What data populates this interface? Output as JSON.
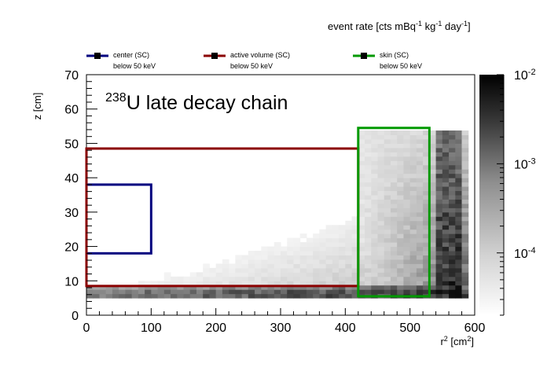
{
  "chart_data": {
    "type": "heatmap",
    "title": "late decay chain",
    "title_isotope_mass": "238",
    "title_isotope_symbol": "U",
    "xlabel": "r",
    "xlabel_sup": "2",
    "xlabel_unit_open": " [cm",
    "xlabel_unit_sup": "2",
    "xlabel_unit_close": "]",
    "ylabel": "z [cm]",
    "xlim": [
      0,
      600
    ],
    "ylim": [
      0,
      70
    ],
    "x_ticks": [
      "0",
      "100",
      "200",
      "300",
      "400",
      "500",
      "600"
    ],
    "x_tick_values": [
      0,
      100,
      200,
      300,
      400,
      500,
      600
    ],
    "y_ticks": [
      "0",
      "10",
      "20",
      "30",
      "40",
      "50",
      "60",
      "70"
    ],
    "y_tick_values": [
      0,
      10,
      20,
      30,
      40,
      50,
      60,
      70
    ],
    "colorbar": {
      "label_parts": [
        "event rate [cts mBq",
        "-1",
        " kg",
        "-1",
        " day",
        "-1",
        "]"
      ],
      "scale": "log",
      "range": [
        2e-05,
        0.01
      ],
      "ticks": [
        {
          "value": 0.01,
          "base": "10",
          "exp": "-2"
        },
        {
          "value": 0.001,
          "base": "10",
          "exp": "-3"
        },
        {
          "value": 0.0001,
          "base": "10",
          "exp": "-4"
        }
      ],
      "colormap": "grayscale"
    },
    "legend": [
      {
        "name": "center (SC)",
        "sub": "below 50 keV",
        "color": "#00007f"
      },
      {
        "name": "active volume (SC)",
        "sub": "below 50 keV",
        "color": "#8b0000"
      },
      {
        "name": "skin (SC)",
        "sub": "below 50 keV",
        "color": "#009900"
      }
    ],
    "regions": [
      {
        "name": "center (SC)",
        "color": "#00007f",
        "r2": [
          0,
          100
        ],
        "z": [
          18,
          38
        ]
      },
      {
        "name": "active volume (SC)",
        "color": "#8b0000",
        "r2": [
          0,
          420
        ],
        "z": [
          8.5,
          48.5
        ]
      },
      {
        "name": "skin (SC)",
        "color": "#009900",
        "r2": [
          420,
          530
        ],
        "z": [
          5.5,
          54.5
        ]
      }
    ],
    "grid": false,
    "legend_placement": "top"
  }
}
